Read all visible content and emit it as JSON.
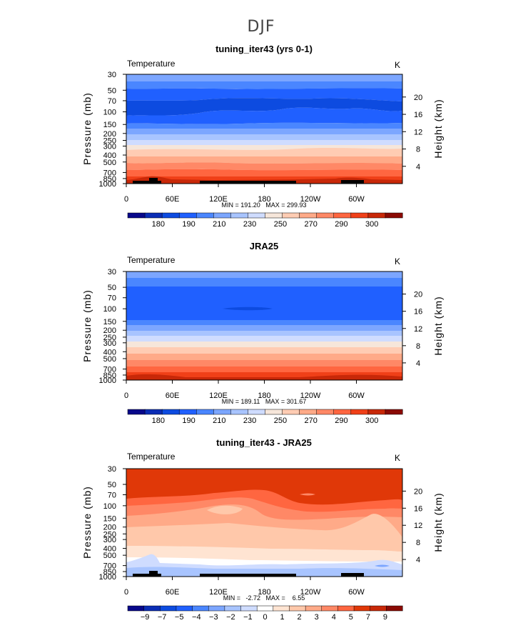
{
  "figure_title": "DJF",
  "chart_data": [
    {
      "type": "heatmap",
      "title": "tuning_iter43 (yrs 0-1)",
      "variable": "Temperature",
      "units": "K",
      "ylabel": "Pressure (mb)",
      "y2label": "Height (km)",
      "xticks": [
        "0",
        "60E",
        "120E",
        "180",
        "120W",
        "60W"
      ],
      "xtick_lon": [
        0,
        60,
        120,
        180,
        240,
        300
      ],
      "xlim": [
        0,
        360
      ],
      "yticks": [
        "30",
        "50",
        "70",
        "100",
        "150",
        "200",
        "250",
        "300",
        "400",
        "500",
        "700",
        "850",
        "1000"
      ],
      "ytick_p": [
        30,
        50,
        70,
        100,
        150,
        200,
        250,
        300,
        400,
        500,
        700,
        850,
        1000
      ],
      "y2ticks": [
        "20",
        "16",
        "12",
        "8",
        "4"
      ],
      "y2tick_km": [
        20,
        16,
        12,
        8,
        4
      ],
      "ylim_mb": [
        1000,
        30
      ],
      "stats": "MIN = 191.20   MAX = 299.93",
      "min": 191.2,
      "max": 299.93,
      "colorbar": {
        "labels": [
          "180",
          "190",
          "210",
          "230",
          "250",
          "270",
          "290",
          "300"
        ],
        "colors": [
          "#08088a",
          "#0b2db5",
          "#0d4be0",
          "#2060ff",
          "#4a86ff",
          "#7ca6ff",
          "#a8c4ff",
          "#cfdcff",
          "#f6e6da",
          "#ffccb3",
          "#ffaa88",
          "#ff8866",
          "#ff6640",
          "#f04018",
          "#c82808",
          "#8a0a04"
        ]
      }
    },
    {
      "type": "heatmap",
      "title": "JRA25",
      "variable": "Temperature",
      "units": "K",
      "ylabel": "Pressure (mb)",
      "y2label": "Height (km)",
      "xticks": [
        "0",
        "60E",
        "120E",
        "180",
        "120W",
        "60W"
      ],
      "xtick_lon": [
        0,
        60,
        120,
        180,
        240,
        300
      ],
      "xlim": [
        0,
        360
      ],
      "yticks": [
        "30",
        "50",
        "70",
        "100",
        "150",
        "200",
        "250",
        "300",
        "400",
        "500",
        "700",
        "850",
        "1000"
      ],
      "ytick_p": [
        30,
        50,
        70,
        100,
        150,
        200,
        250,
        300,
        400,
        500,
        700,
        850,
        1000
      ],
      "y2ticks": [
        "20",
        "16",
        "12",
        "8",
        "4"
      ],
      "y2tick_km": [
        20,
        16,
        12,
        8,
        4
      ],
      "ylim_mb": [
        1000,
        30
      ],
      "stats": "MIN = 189.11   MAX = 301.67",
      "min": 189.11,
      "max": 301.67,
      "colorbar": {
        "labels": [
          "180",
          "190",
          "210",
          "230",
          "250",
          "270",
          "290",
          "300"
        ],
        "colors": [
          "#08088a",
          "#0b2db5",
          "#0d4be0",
          "#2060ff",
          "#4a86ff",
          "#7ca6ff",
          "#a8c4ff",
          "#cfdcff",
          "#f6e6da",
          "#ffccb3",
          "#ffaa88",
          "#ff8866",
          "#ff6640",
          "#f04018",
          "#c82808",
          "#8a0a04"
        ]
      }
    },
    {
      "type": "heatmap",
      "title": "tuning_iter43 - JRA25",
      "variable": "Temperature",
      "units": "K",
      "ylabel": "Pressure (mb)",
      "y2label": "Height (km)",
      "xticks": [
        "0",
        "60E",
        "120E",
        "180",
        "120W",
        "60W"
      ],
      "xtick_lon": [
        0,
        60,
        120,
        180,
        240,
        300
      ],
      "xlim": [
        0,
        360
      ],
      "yticks": [
        "30",
        "50",
        "70",
        "100",
        "150",
        "200",
        "250",
        "300",
        "400",
        "500",
        "700",
        "850",
        "1000"
      ],
      "ytick_p": [
        30,
        50,
        70,
        100,
        150,
        200,
        250,
        300,
        400,
        500,
        700,
        850,
        1000
      ],
      "y2ticks": [
        "20",
        "16",
        "12",
        "8",
        "4"
      ],
      "y2tick_km": [
        20,
        16,
        12,
        8,
        4
      ],
      "ylim_mb": [
        1000,
        30
      ],
      "stats": "MIN =   -2.72   MAX =    6.55",
      "min": -2.72,
      "max": 6.55,
      "colorbar": {
        "labels": [
          "−9",
          "−7",
          "−5",
          "−4",
          "−3",
          "−2",
          "−1",
          "0",
          "1",
          "2",
          "3",
          "4",
          "5",
          "7",
          "9"
        ],
        "colors": [
          "#08088a",
          "#0b2db5",
          "#0d4be0",
          "#2060ff",
          "#4a86ff",
          "#7ca6ff",
          "#a8c4ff",
          "#cfdcff",
          "#ffffff",
          "#ffe4d2",
          "#ffc8aa",
          "#ffaa88",
          "#ff8866",
          "#ff6640",
          "#e03808",
          "#c82808",
          "#8a0a04"
        ]
      }
    }
  ]
}
